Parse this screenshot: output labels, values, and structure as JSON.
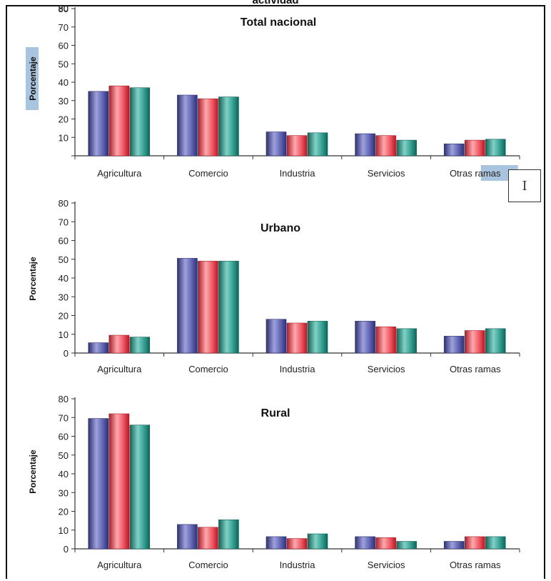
{
  "header": {
    "title": "actividad"
  },
  "chart_data": [
    {
      "type": "bar",
      "title": "Total nacional",
      "ylabel": "Porcentaje",
      "ylim": [
        0,
        80
      ],
      "yticks": [
        0,
        10,
        20,
        30,
        40,
        50,
        60,
        70,
        80
      ],
      "categories": [
        "Agricultura",
        "Comercio",
        "Industria",
        "Servicios",
        "Otras ramas"
      ],
      "series": [
        {
          "values": [
            35,
            33,
            13,
            12,
            6.5
          ]
        },
        {
          "values": [
            38,
            31,
            11,
            11,
            8.5
          ]
        },
        {
          "values": [
            37,
            32,
            12.5,
            8.5,
            9
          ]
        }
      ]
    },
    {
      "type": "bar",
      "title": "Urbano",
      "ylabel": "Porcentaje",
      "ylim": [
        0,
        80
      ],
      "yticks": [
        0,
        10,
        20,
        30,
        40,
        50,
        60,
        70,
        80
      ],
      "categories": [
        "Agricultura",
        "Comercio",
        "Industria",
        "Servicios",
        "Otras ramas"
      ],
      "series": [
        {
          "values": [
            5.5,
            50.5,
            18,
            17,
            9
          ]
        },
        {
          "values": [
            9.5,
            49,
            16,
            14,
            12
          ]
        },
        {
          "values": [
            8.5,
            49,
            17,
            13,
            13
          ]
        }
      ]
    },
    {
      "type": "bar",
      "title": "Rural",
      "ylabel": "Porcentaje",
      "ylim": [
        0,
        80
      ],
      "yticks": [
        0,
        10,
        20,
        30,
        40,
        50,
        60,
        70,
        80
      ],
      "categories": [
        "Agricultura",
        "Comercio",
        "Industria",
        "Servicios",
        "Otras ramas"
      ],
      "series": [
        {
          "values": [
            69.5,
            13,
            6.5,
            6.5,
            4
          ]
        },
        {
          "values": [
            72,
            11.5,
            5.5,
            6,
            6.5
          ]
        },
        {
          "values": [
            66,
            15.5,
            8,
            4,
            6.5
          ]
        }
      ]
    }
  ],
  "colors": {
    "series": [
      "#5b5fae",
      "#f04f5a",
      "#2f9a8e"
    ],
    "series_dark": [
      "#2e3170",
      "#a81e28",
      "#166056"
    ],
    "series_light": [
      "#9ea1dc",
      "#ffa8ad",
      "#7fd2c6"
    ],
    "label_highlight": "#a9c4de"
  },
  "cursor": {
    "icon": "text-cursor-icon",
    "glyph": "I"
  }
}
